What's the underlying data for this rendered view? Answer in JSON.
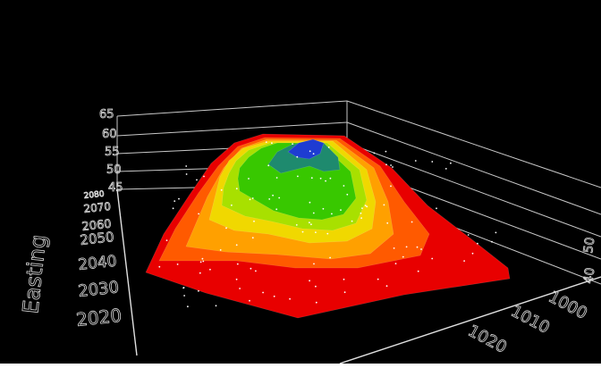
{
  "chart_data": {
    "type": "surface3d",
    "z_axis": {
      "label": "",
      "ticks": [
        "40",
        "45",
        "50",
        "55",
        "60",
        "65"
      ]
    },
    "y_axis": {
      "label": "Easting",
      "ticks": [
        "2020",
        "2030",
        "2040",
        "2050",
        "2060",
        "2070",
        "2080"
      ]
    },
    "x_axis": {
      "label": "",
      "ticks": [
        "1000",
        "1010",
        "1020"
      ]
    },
    "side_z_ticks": [
      "40",
      "50"
    ],
    "colormap": [
      "#e80000",
      "#ff5a00",
      "#ffa000",
      "#f0d800",
      "#a8e000",
      "#38c800",
      "#1e8a6e",
      "#1e3cd2"
    ],
    "surface_levels": [
      {
        "level": 0,
        "color": "#e80000"
      },
      {
        "level": 1,
        "color": "#ff5a00"
      },
      {
        "level": 2,
        "color": "#ffa000"
      },
      {
        "level": 3,
        "color": "#f0d800"
      },
      {
        "level": 4,
        "color": "#a8e000"
      },
      {
        "level": 5,
        "color": "#38c800"
      },
      {
        "level": 6,
        "color": "#1e8a6e"
      },
      {
        "level": 7,
        "color": "#1e3cd2"
      }
    ],
    "grid": true
  }
}
